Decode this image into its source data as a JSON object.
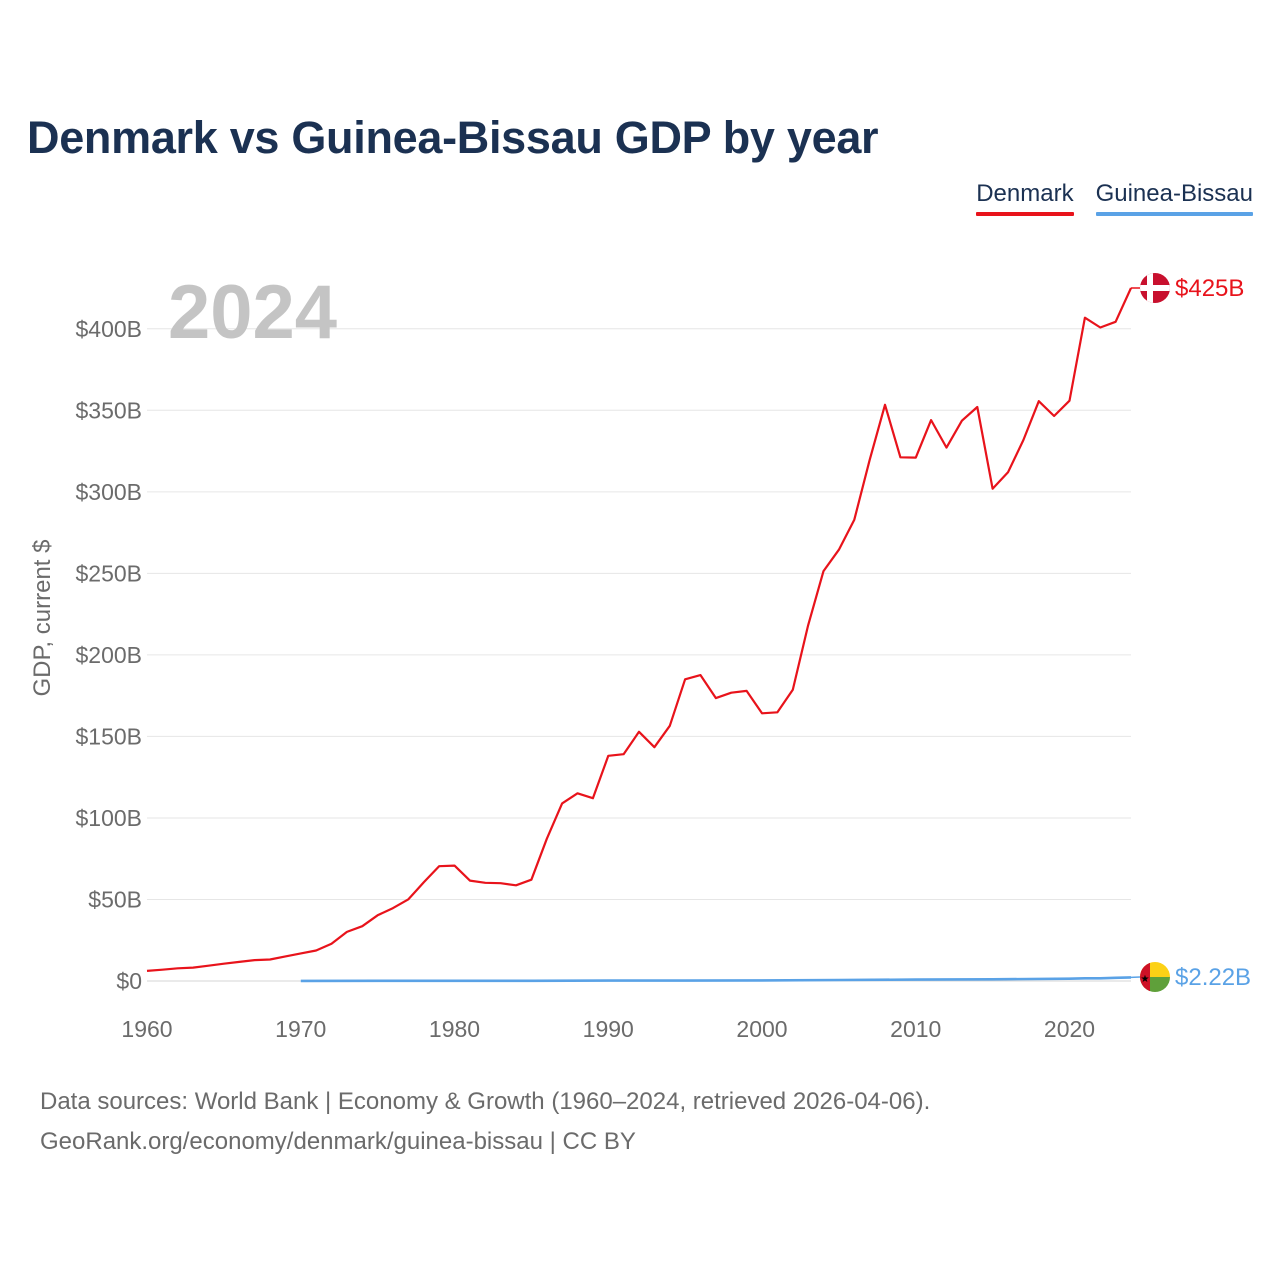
{
  "title": "Denmark vs Guinea-Bissau GDP by year",
  "year_overlay": "2024",
  "footer": {
    "line1": "Data sources: World Bank | Economy & Growth (1960–2024, retrieved 2026-04-06).",
    "line2": "GeoRank.org/economy/denmark/guinea-bissau | CC BY"
  },
  "colors": {
    "denmark": "#e8131b",
    "guinea_bissau": "#5aa2e6",
    "title": "#1b3152",
    "axis_text": "#6b6b6b",
    "grid": "#e6e6e6",
    "overlay": "#c4c4c4"
  },
  "chart_data": {
    "type": "line",
    "title": "Denmark vs Guinea-Bissau GDP by year",
    "xlabel": "",
    "ylabel": "GDP, current $",
    "xlim": [
      1960,
      2024
    ],
    "ylim": [
      0,
      425
    ],
    "y_unit": "billions USD",
    "x_ticks": [
      1960,
      1970,
      1980,
      1990,
      2000,
      2010,
      2020
    ],
    "x_tick_labels": [
      "1960",
      "1970",
      "1980",
      "1990",
      "2000",
      "2010",
      "2020"
    ],
    "y_ticks": [
      0,
      50,
      100,
      150,
      200,
      250,
      300,
      350,
      400
    ],
    "y_tick_labels": [
      "$0",
      "$50B",
      "$100B",
      "$150B",
      "$200B",
      "$250B",
      "$300B",
      "$350B",
      "$400B"
    ],
    "legend_position": "top-right",
    "series": [
      {
        "name": "Denmark",
        "color": "#e8131b",
        "end_label": "$425B",
        "points": [
          [
            1960,
            6.2
          ],
          [
            1961,
            6.9
          ],
          [
            1962,
            7.8
          ],
          [
            1963,
            8.2
          ],
          [
            1964,
            9.4
          ],
          [
            1965,
            10.6
          ],
          [
            1966,
            11.7
          ],
          [
            1967,
            12.8
          ],
          [
            1968,
            13.2
          ],
          [
            1969,
            15.1
          ],
          [
            1970,
            16.9
          ],
          [
            1971,
            18.7
          ],
          [
            1972,
            22.9
          ],
          [
            1973,
            30.1
          ],
          [
            1974,
            33.6
          ],
          [
            1975,
            40.3
          ],
          [
            1976,
            44.7
          ],
          [
            1977,
            50.1
          ],
          [
            1978,
            60.5
          ],
          [
            1979,
            70.4
          ],
          [
            1980,
            70.8
          ],
          [
            1981,
            61.6
          ],
          [
            1982,
            60.2
          ],
          [
            1983,
            60.0
          ],
          [
            1984,
            58.7
          ],
          [
            1985,
            62.1
          ],
          [
            1986,
            87.2
          ],
          [
            1987,
            108.9
          ],
          [
            1988,
            115.1
          ],
          [
            1989,
            112.1
          ],
          [
            1990,
            138.1
          ],
          [
            1991,
            139.1
          ],
          [
            1992,
            152.8
          ],
          [
            1993,
            143.4
          ],
          [
            1994,
            156.5
          ],
          [
            1995,
            185.0
          ],
          [
            1996,
            187.6
          ],
          [
            1997,
            173.5
          ],
          [
            1998,
            176.8
          ],
          [
            1999,
            177.9
          ],
          [
            2000,
            164.2
          ],
          [
            2001,
            164.8
          ],
          [
            2002,
            178.6
          ],
          [
            2003,
            218.1
          ],
          [
            2004,
            251.4
          ],
          [
            2005,
            264.5
          ],
          [
            2006,
            282.9
          ],
          [
            2007,
            319.4
          ],
          [
            2008,
            353.4
          ],
          [
            2009,
            321.2
          ],
          [
            2010,
            321.0
          ],
          [
            2011,
            344.0
          ],
          [
            2012,
            327.1
          ],
          [
            2013,
            343.6
          ],
          [
            2014,
            352.0
          ],
          [
            2015,
            301.9
          ],
          [
            2016,
            312.0
          ],
          [
            2017,
            331.8
          ],
          [
            2018,
            355.6
          ],
          [
            2019,
            346.5
          ],
          [
            2020,
            355.9
          ],
          [
            2021,
            406.8
          ],
          [
            2022,
            400.8
          ],
          [
            2023,
            404.3
          ],
          [
            2024,
            425.0
          ]
        ]
      },
      {
        "name": "Guinea-Bissau",
        "color": "#5aa2e6",
        "end_label": "$2.22B",
        "points": [
          [
            1970,
            0.08
          ],
          [
            1975,
            0.12
          ],
          [
            1980,
            0.13
          ],
          [
            1985,
            0.14
          ],
          [
            1990,
            0.24
          ],
          [
            1995,
            0.26
          ],
          [
            2000,
            0.37
          ],
          [
            2005,
            0.59
          ],
          [
            2010,
            0.85
          ],
          [
            2015,
            1.05
          ],
          [
            2020,
            1.43
          ],
          [
            2021,
            1.64
          ],
          [
            2022,
            1.63
          ],
          [
            2023,
            1.98
          ],
          [
            2024,
            2.22
          ]
        ]
      }
    ]
  }
}
